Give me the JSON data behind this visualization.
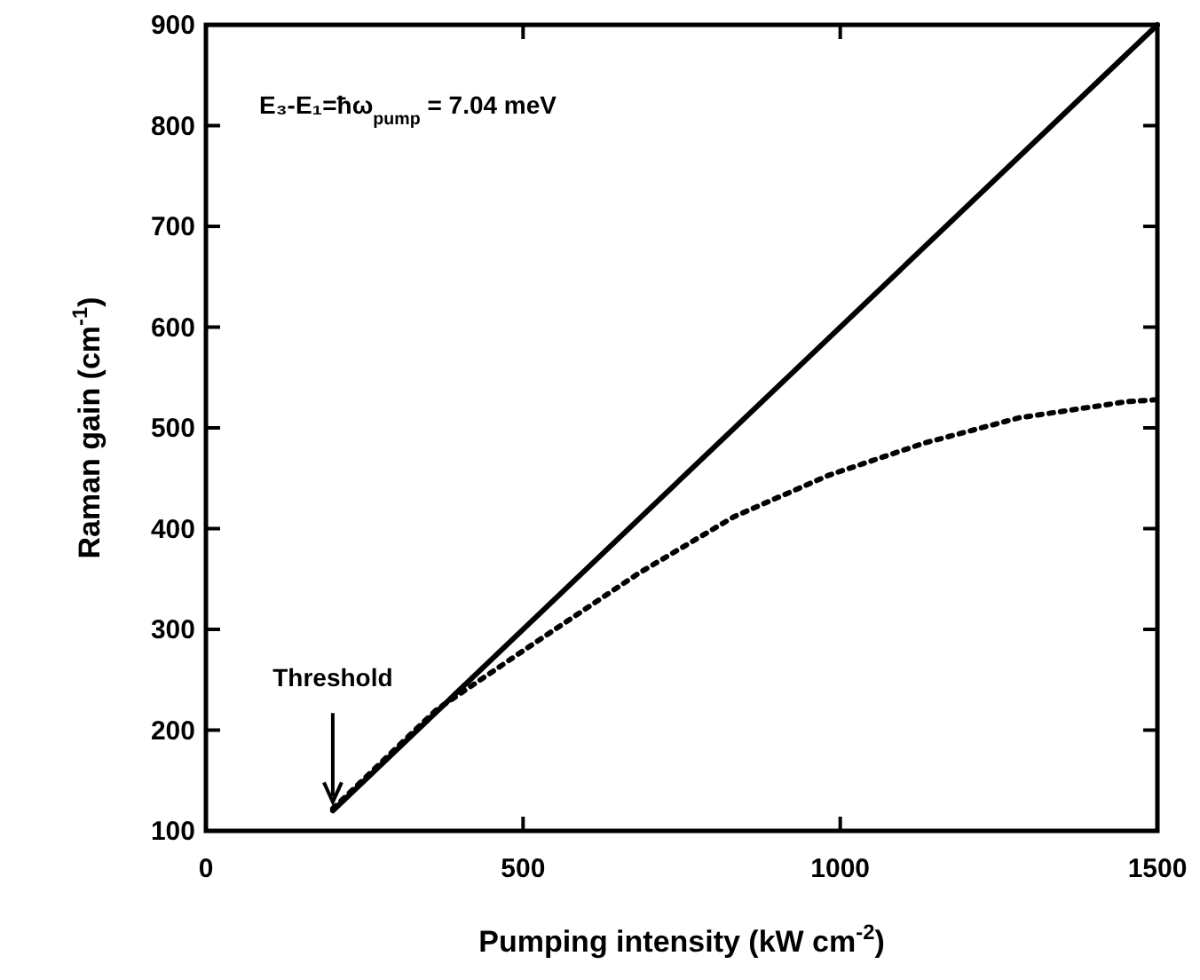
{
  "chart_data": {
    "type": "line",
    "xlabel": "Pumping intensity (kW cm$^{-2}$)",
    "ylabel": "Raman gain (cm$^{-1}$)",
    "xlim": [
      0,
      1500
    ],
    "xticks": [
      0,
      500,
      1000,
      1500
    ],
    "ylim": [
      100,
      900
    ],
    "yticks": [
      100,
      200,
      300,
      400,
      500,
      600,
      700,
      800,
      900
    ],
    "grid": false,
    "series": [
      {
        "color": "#000000",
        "line_style": "solid",
        "x": [
          200,
          1500
        ],
        "values": [
          120,
          900
        ]
      },
      {
        "color": "#000000",
        "line_style": "dotted",
        "x": [
          200,
          363,
          503,
          683,
          833,
          982,
          1133,
          1282,
          1452,
          1500
        ],
        "values": [
          122,
          220,
          280,
          356,
          412,
          453,
          485,
          510,
          526,
          528
        ]
      }
    ],
    "annotations": [
      "E₃-E₁=ħω$_{pump}$ = 7.04 meV",
      {
        "text": "Threshold",
        "x": 200,
        "y": 120
      }
    ]
  }
}
